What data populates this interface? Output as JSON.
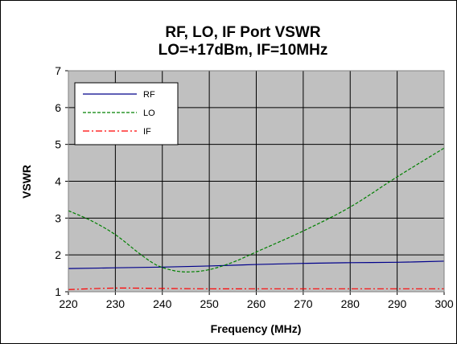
{
  "chart_data": {
    "type": "line",
    "title": "RF, LO, IF Port VSWR",
    "subtitle": "LO=+17dBm, IF=10MHz",
    "xlabel": "Frequency (MHz)",
    "ylabel": "VSWR",
    "xlim": [
      220,
      300
    ],
    "ylim": [
      1,
      7
    ],
    "xticks": [
      "220",
      "230",
      "240",
      "250",
      "260",
      "270",
      "280",
      "290",
      "300"
    ],
    "yticks": [
      "1",
      "2",
      "3",
      "4",
      "5",
      "6",
      "7"
    ],
    "grid": true,
    "legend_position": "top-left",
    "plot_background": "#c0c0c0",
    "series": [
      {
        "name": "RF",
        "color": "#00008b",
        "dash": "solid",
        "x": [
          220,
          230,
          240,
          250,
          260,
          270,
          280,
          290,
          300
        ],
        "y": [
          1.63,
          1.65,
          1.67,
          1.7,
          1.74,
          1.77,
          1.79,
          1.8,
          1.83
        ]
      },
      {
        "name": "LO",
        "color": "#008000",
        "dash": "dashed",
        "x": [
          220,
          225,
          230,
          235,
          238,
          240,
          243,
          246,
          250,
          255,
          260,
          270,
          280,
          290,
          300
        ],
        "y": [
          3.2,
          2.92,
          2.55,
          2.05,
          1.78,
          1.66,
          1.56,
          1.54,
          1.6,
          1.8,
          2.08,
          2.65,
          3.3,
          4.12,
          4.9
        ]
      },
      {
        "name": "IF",
        "color": "#ff0000",
        "dash": "dashdot",
        "x": [
          220,
          230,
          240,
          250,
          260,
          270,
          280,
          290,
          300
        ],
        "y": [
          1.06,
          1.1,
          1.09,
          1.08,
          1.08,
          1.08,
          1.08,
          1.08,
          1.08
        ]
      }
    ]
  }
}
